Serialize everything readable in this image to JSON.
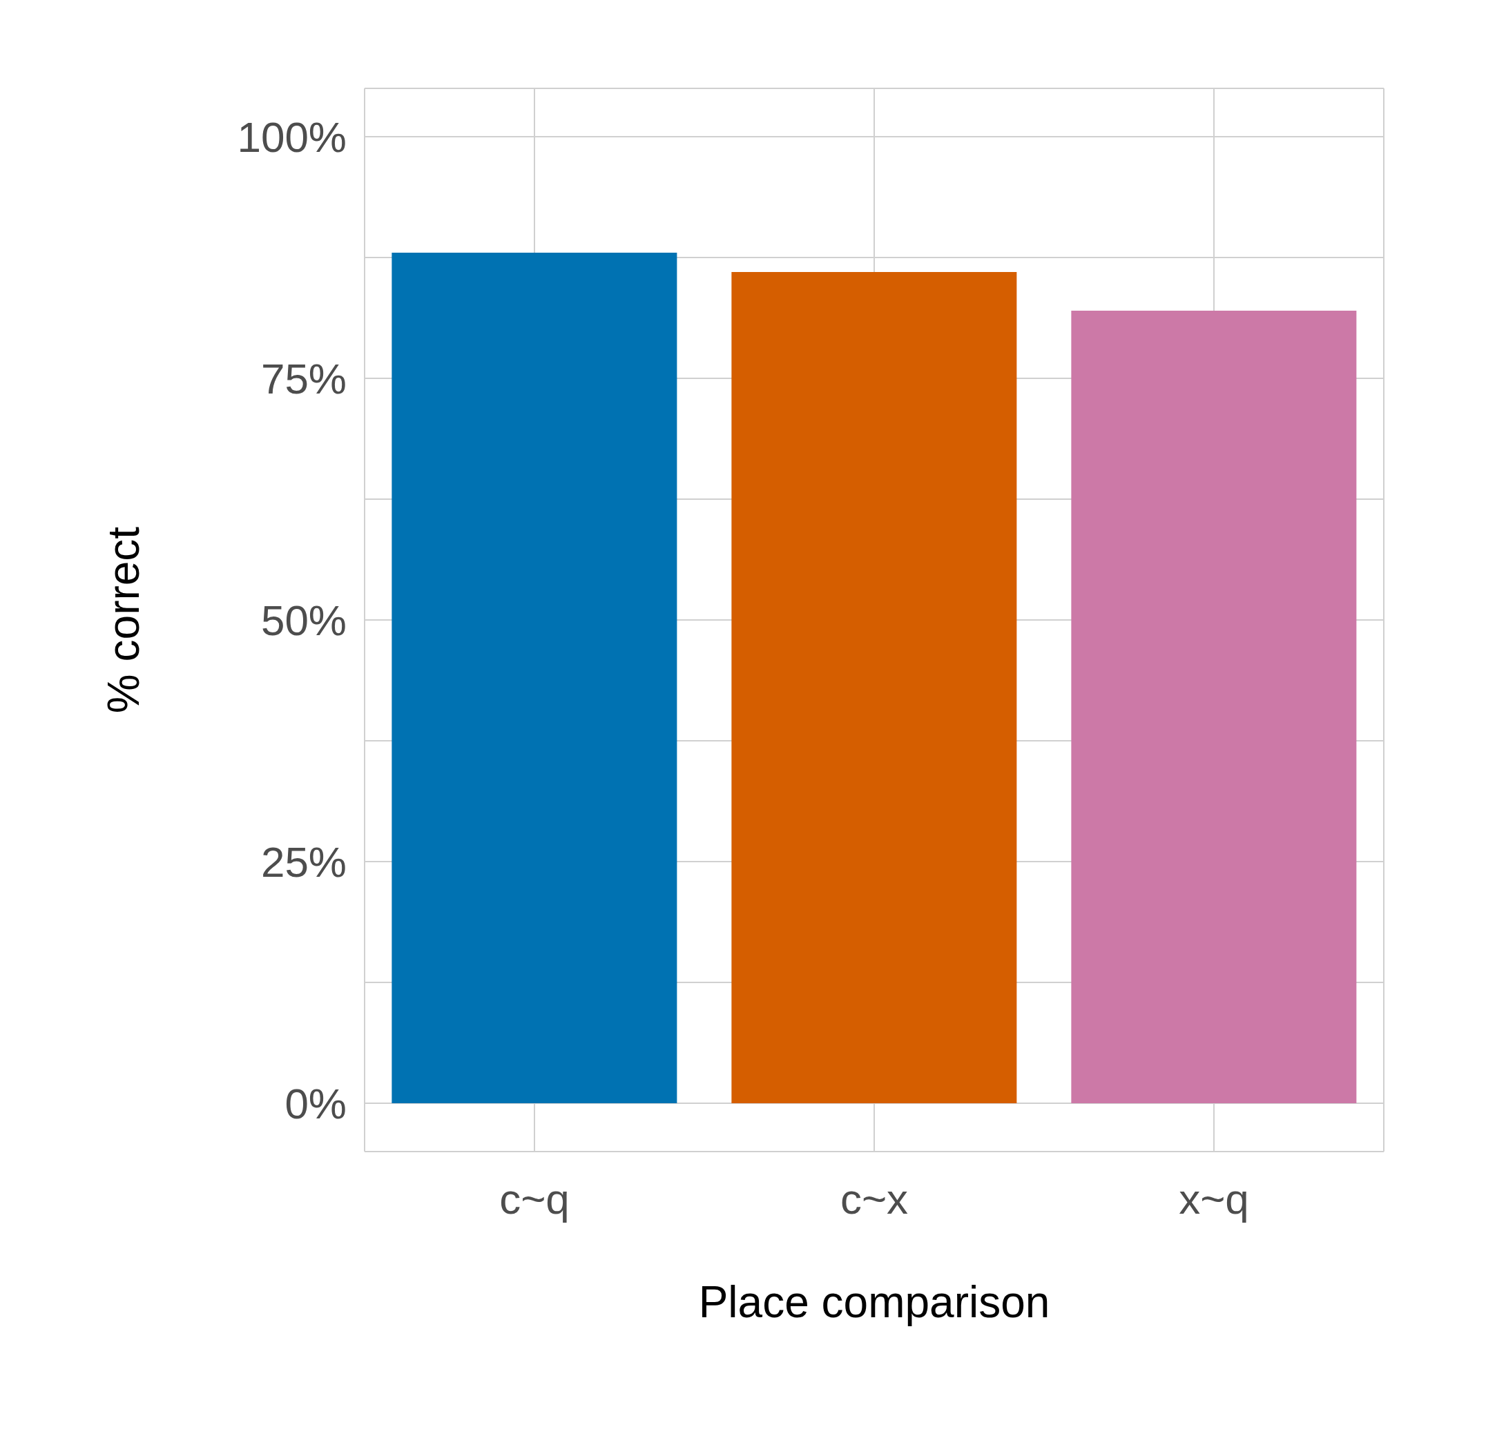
{
  "chart_data": {
    "type": "bar",
    "xlabel": "Place comparison",
    "ylabel": "% correct",
    "categories": [
      "c~q",
      "c~x",
      "x~q"
    ],
    "values": [
      88,
      86,
      82
    ],
    "colors": [
      "#0072b2",
      "#d55e00",
      "#cc79a7"
    ],
    "ylim": [
      -5,
      105
    ],
    "yticks": [
      {
        "value": 0,
        "label": "0%"
      },
      {
        "value": 12.5,
        "label": null
      },
      {
        "value": 25,
        "label": "25%"
      },
      {
        "value": 37.5,
        "label": null
      },
      {
        "value": 50,
        "label": "50%"
      },
      {
        "value": 62.5,
        "label": null
      },
      {
        "value": 75,
        "label": "75%"
      },
      {
        "value": 87.5,
        "label": null
      },
      {
        "value": 100,
        "label": "100%"
      }
    ],
    "grid": true
  }
}
